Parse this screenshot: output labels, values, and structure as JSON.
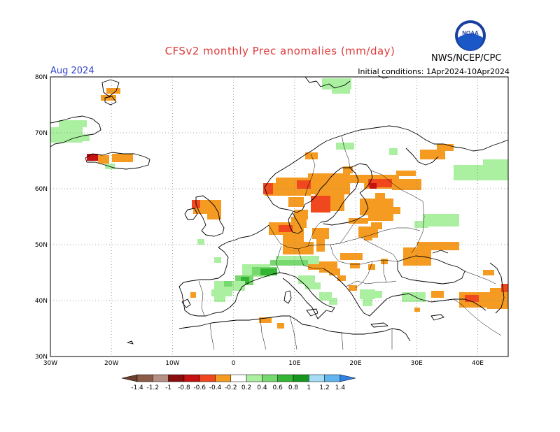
{
  "header": {
    "title": "CFSv2 monthly Prec anomalies (mm/day)",
    "month": "Aug 2024",
    "initial_conditions": "Initial conditions: 1Apr2024-10Apr2024",
    "agency": "NWS/NCEP/CPC",
    "logo_text": "NOAA"
  },
  "map": {
    "lat_ticks": [
      "80N",
      "70N",
      "60N",
      "50N",
      "40N",
      "30N"
    ],
    "lon_ticks": [
      "30W",
      "20W",
      "10W",
      "0",
      "10E",
      "20E",
      "30E",
      "40E"
    ]
  },
  "colorbar": {
    "labels": [
      "-1.4",
      "-1.2",
      "-1",
      "-0.8",
      "-0.6",
      "-0.4",
      "-0.2",
      "0.2",
      "0.4",
      "0.6",
      "0.8",
      "1",
      "1.2",
      "1.4"
    ],
    "colors": [
      "#6b3f2a",
      "#8c5a48",
      "#b59084",
      "#8a0d0d",
      "#c41111",
      "#f0471e",
      "#f59b22",
      "#ffffff",
      "#aaf0a0",
      "#78d870",
      "#35b534",
      "#16961e",
      "#a6dcf6",
      "#62b6f0",
      "#2f7fe6"
    ]
  },
  "anomaly_colors": {
    "orange": "#f59b22",
    "red": "#f0471e",
    "darkred": "#c41111",
    "lightgreen": "#aaf0a0",
    "green": "#78d870",
    "darkgreen": "#35b534"
  }
}
